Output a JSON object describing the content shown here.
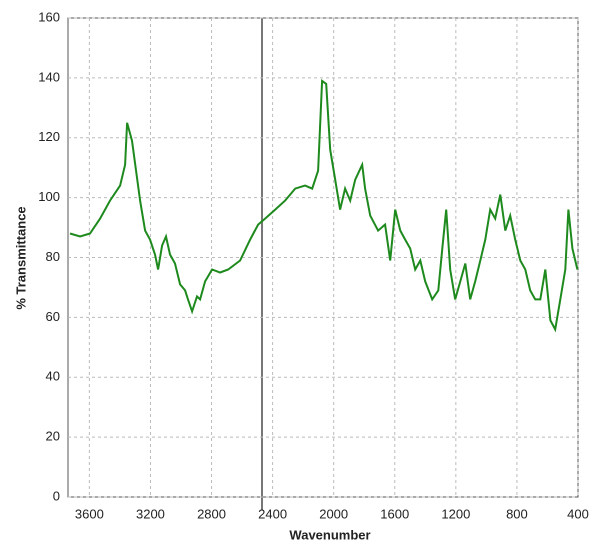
{
  "chart_data": {
    "type": "line",
    "x_label": "Wavenumber",
    "y_label": "% Transmittance",
    "xlim": [
      3740,
      400
    ],
    "ylim": [
      0,
      160
    ],
    "xticks": [
      3600,
      3200,
      2800,
      2400,
      2000,
      1600,
      1200,
      800,
      400
    ],
    "yticks": [
      0,
      20,
      40,
      60,
      80,
      100,
      120,
      140,
      160
    ],
    "grid": true,
    "series": [
      {
        "color": "#1e8a1e",
        "x": [
          3727,
          3661,
          3596,
          3530,
          3465,
          3399,
          3366,
          3353,
          3321,
          3268,
          3235,
          3203,
          3170,
          3150,
          3124,
          3098,
          3072,
          3039,
          3006,
          2973,
          2954,
          2927,
          2895,
          2875,
          2842,
          2796,
          2744,
          2691,
          2613,
          2547,
          2495,
          2449,
          2383,
          2318,
          2252,
          2187,
          2141,
          2102,
          2076,
          2049,
          2023,
          1990,
          1958,
          1925,
          1892,
          1859,
          1813,
          1794,
          1761,
          1709,
          1663,
          1630,
          1597,
          1564,
          1532,
          1499,
          1466,
          1433,
          1401,
          1355,
          1315,
          1289,
          1263,
          1237,
          1204,
          1171,
          1138,
          1106,
          1073,
          1040,
          1007,
          975,
          942,
          909,
          876,
          844,
          811,
          778,
          745,
          713,
          680,
          647,
          614,
          581,
          549,
          516,
          483,
          463,
          437,
          404
        ],
        "values": [
          88,
          87,
          88,
          93,
          99,
          104,
          111,
          125,
          119,
          99,
          89,
          86,
          81,
          76,
          84,
          87,
          81,
          78,
          71,
          69,
          66,
          62,
          67,
          66,
          72,
          76,
          75,
          76,
          79,
          86,
          91,
          93,
          96,
          99,
          103,
          104,
          103,
          109,
          139,
          138,
          116,
          106,
          96,
          103,
          99,
          106,
          111,
          103,
          94,
          89,
          91,
          79,
          96,
          89,
          86,
          83,
          76,
          79,
          72,
          66,
          69,
          83,
          96,
          76,
          66,
          72,
          78,
          66,
          72,
          79,
          86,
          96,
          93,
          101,
          89,
          94,
          86,
          79,
          76,
          69,
          66,
          66,
          76,
          59,
          56,
          66,
          76,
          96,
          83,
          76
        ]
      }
    ]
  }
}
